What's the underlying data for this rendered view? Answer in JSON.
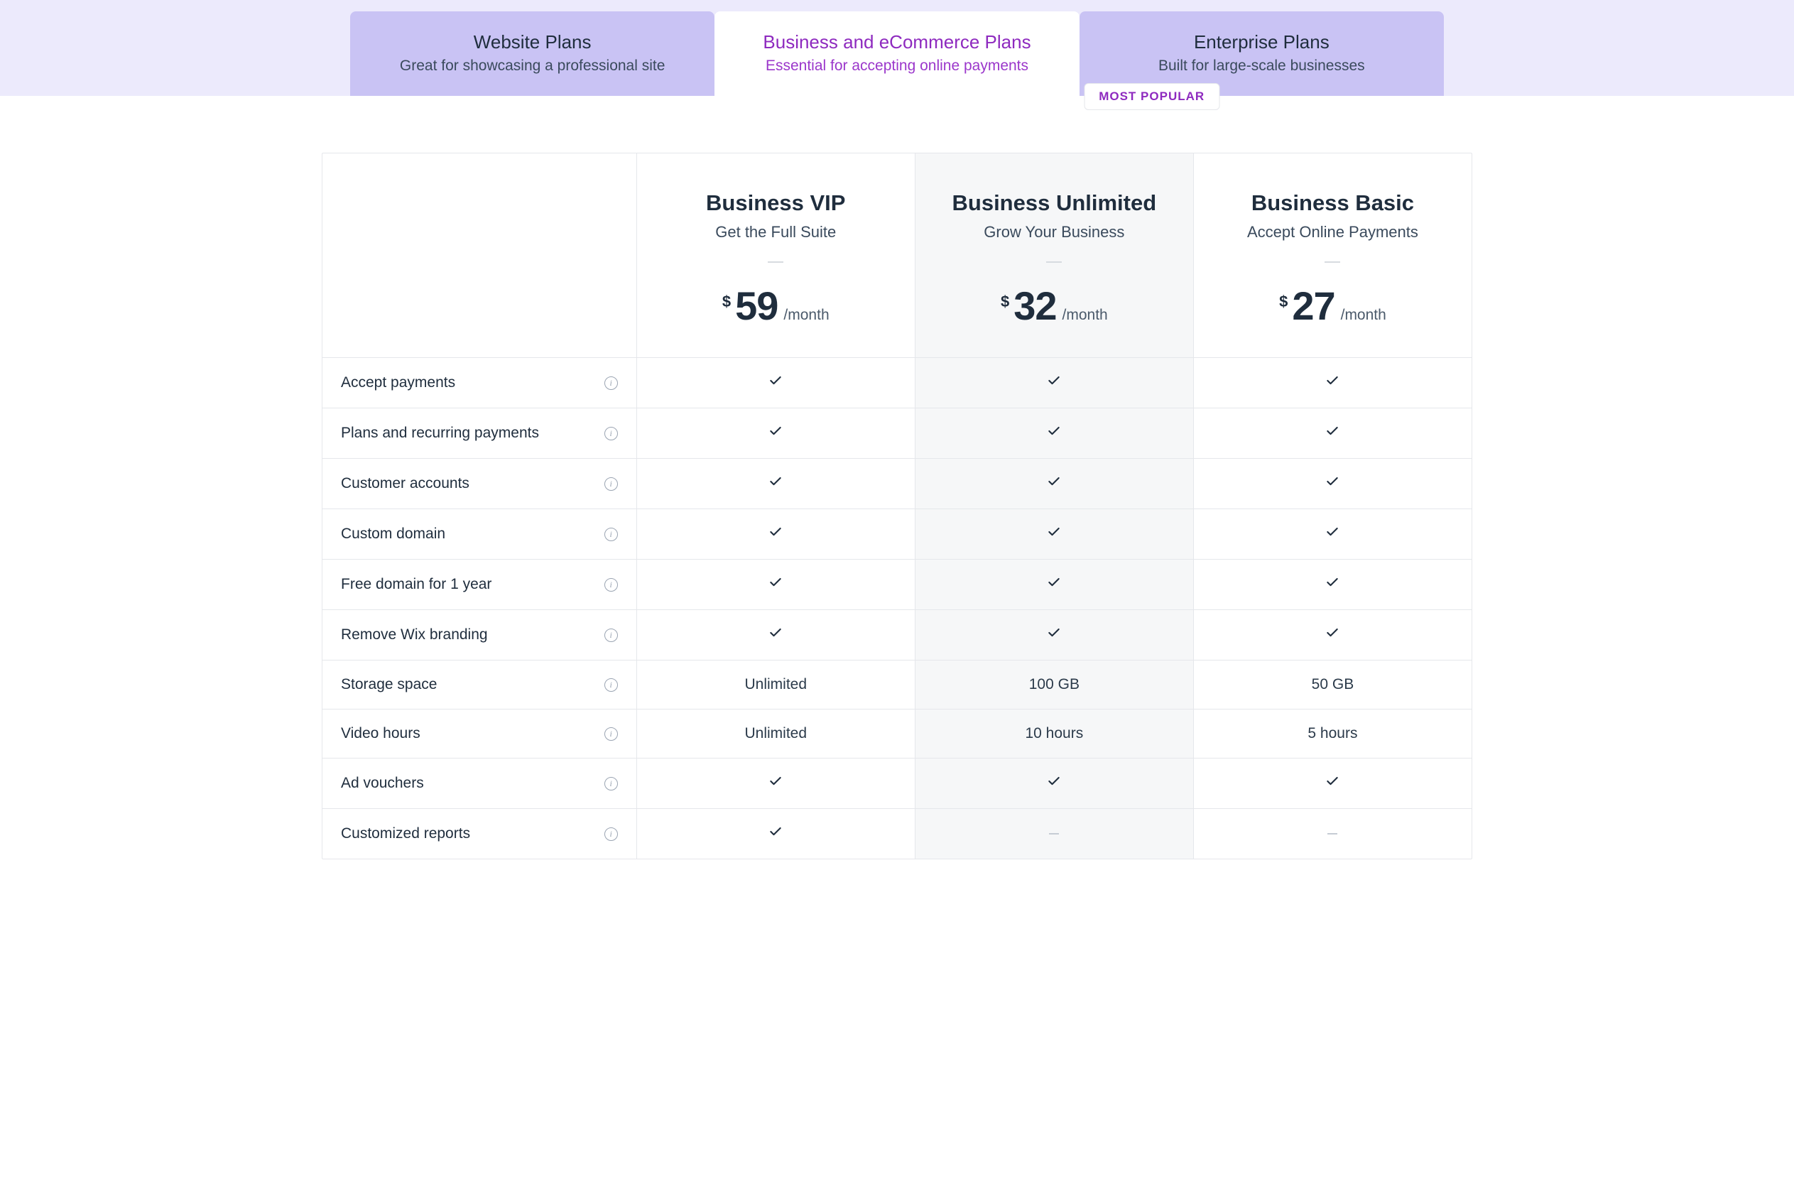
{
  "colors": {
    "band_bg": "#eceafc",
    "tab_bg": "#c9c3f4",
    "active_accent": "#8e2abf",
    "highlight_bg": "#f6f7f8",
    "border": "#e5e7eb",
    "text_primary": "#1f2d3d",
    "text_secondary": "#3a4a5c",
    "icon_muted": "#9aa4b2"
  },
  "tabs": [
    {
      "title": "Website Plans",
      "sub": "Great for showcasing a professional site",
      "active": false
    },
    {
      "title": "Business and eCommerce Plans",
      "sub": "Essential for accepting online payments",
      "active": true
    },
    {
      "title": "Enterprise Plans",
      "sub": "Built for large-scale businesses",
      "active": false
    }
  ],
  "badge": "MOST POPULAR",
  "currency": "$",
  "per_label": "/month",
  "plans": [
    {
      "name": "Business VIP",
      "tag": "Get the Full Suite",
      "price": "59",
      "highlight": false
    },
    {
      "name": "Business Unlimited",
      "tag": "Grow Your Business",
      "price": "32",
      "highlight": true
    },
    {
      "name": "Business Basic",
      "tag": "Accept Online Payments",
      "price": "27",
      "highlight": false
    }
  ],
  "features": [
    {
      "label": "Accept payments",
      "values": [
        "check",
        "check",
        "check"
      ]
    },
    {
      "label": "Plans and recurring payments",
      "values": [
        "check",
        "check",
        "check"
      ]
    },
    {
      "label": "Customer accounts",
      "values": [
        "check",
        "check",
        "check"
      ]
    },
    {
      "label": "Custom domain",
      "values": [
        "check",
        "check",
        "check"
      ]
    },
    {
      "label": "Free domain for 1 year",
      "values": [
        "check",
        "check",
        "check"
      ]
    },
    {
      "label": "Remove Wix branding",
      "values": [
        "check",
        "check",
        "check"
      ]
    },
    {
      "label": "Storage space",
      "values": [
        "Unlimited",
        "100 GB",
        "50 GB"
      ]
    },
    {
      "label": "Video hours",
      "values": [
        "Unlimited",
        "10 hours",
        "5 hours"
      ]
    },
    {
      "label": "Ad vouchers",
      "values": [
        "check",
        "check",
        "check"
      ]
    },
    {
      "label": "Customized reports",
      "values": [
        "check",
        "dash",
        "dash"
      ]
    }
  ]
}
